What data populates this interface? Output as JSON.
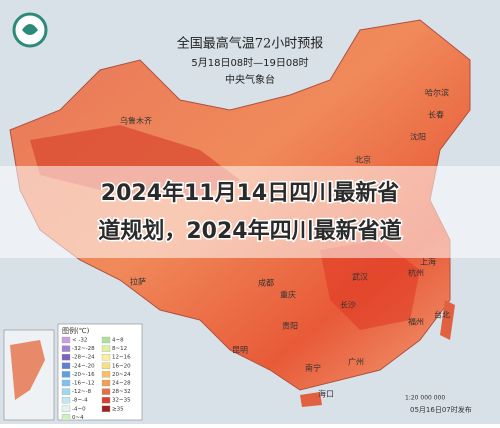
{
  "map": {
    "title": "全国最高气温72小时预报",
    "period": "5月18日08时—19日08时",
    "issuer": "中央气象台",
    "legend_title": "图例(℃)",
    "legend": [
      "< -32",
      "-32~-28",
      "-28~-24",
      "-24~-20",
      "-20~-16",
      "-16~-12",
      "-12~-8",
      "-8~-4",
      "-4~0",
      "0~4",
      "4~8",
      "8~12",
      "12~16",
      "16~20",
      "20~24",
      "24~28",
      "28~32",
      "32~35",
      "≥35"
    ],
    "cities": [
      "乌鲁木齐",
      "哈尔滨",
      "长春",
      "沈阳",
      "北京",
      "拉萨",
      "成都",
      "重庆",
      "贵阳",
      "武汉",
      "长沙",
      "杭州",
      "上海",
      "福州",
      "台北",
      "广州",
      "南宁",
      "海口",
      "昆明"
    ],
    "scale": "1:20 000 000",
    "issued": "05月16日07时发布"
  },
  "overlay": {
    "headline": [
      "2024年11月14日四川最新省",
      "道规划，2024年四川最新省道"
    ]
  }
}
